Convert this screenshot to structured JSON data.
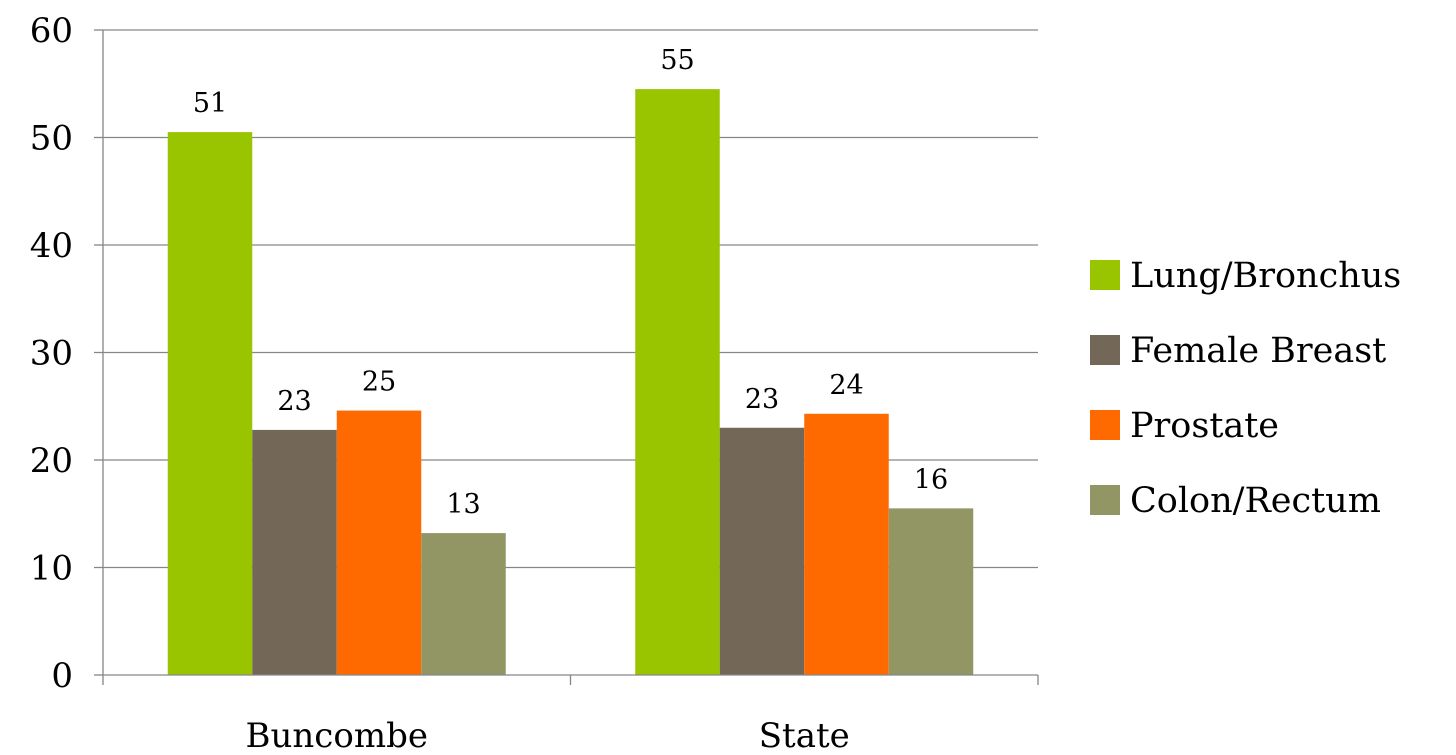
{
  "chart_data": {
    "type": "bar",
    "title": "",
    "xlabel": "",
    "ylabel": "",
    "categories": [
      "Buncombe",
      "State"
    ],
    "series": [
      {
        "name": "Lung/Bronchus",
        "color": "#99c400",
        "values": [
          50.5,
          54.5
        ],
        "labels": [
          "51",
          "55"
        ]
      },
      {
        "name": "Female Breast",
        "color": "#736857",
        "values": [
          22.8,
          23.0
        ],
        "labels": [
          "23",
          "23"
        ]
      },
      {
        "name": "Prostate",
        "color": "#ff6a00",
        "values": [
          24.6,
          24.3
        ],
        "labels": [
          "25",
          "24"
        ]
      },
      {
        "name": "Colon/Rectum",
        "color": "#929665",
        "values": [
          13.2,
          15.5
        ],
        "labels": [
          "13",
          "16"
        ]
      }
    ],
    "ylim": [
      0,
      60
    ],
    "yticks": [
      0,
      10,
      20,
      30,
      40,
      50,
      60
    ],
    "grid": true,
    "legend_position": "right"
  }
}
